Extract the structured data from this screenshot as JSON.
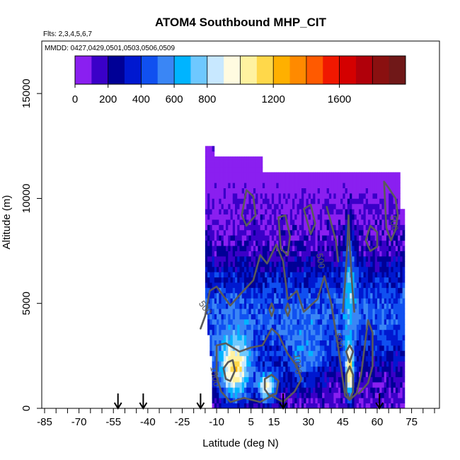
{
  "chart_data": {
    "type": "heatmap",
    "title": "ATOM4 Southbound MHP_CIT",
    "flights_text": "Flts: 2,3,4,5,6,7",
    "dates_text": "MMDD: 0427,0429,0501,0503,0506,0509",
    "xlabel": "Latitude (deg N)",
    "ylabel": "Altitude (m)",
    "xlim": [
      -85,
      85
    ],
    "ylim": [
      0,
      17500
    ],
    "x_ticks": [
      -85,
      -70,
      -55,
      -40,
      -25,
      -10,
      5,
      15,
      30,
      45,
      60,
      75
    ],
    "x_tick_labels": [
      "-85",
      "-70",
      "-55",
      "-40",
      "-25",
      "-10",
      "5",
      "15",
      "30",
      "45",
      "60",
      "75"
    ],
    "x_minor_step": 5,
    "y_ticks": [
      0,
      5000,
      10000,
      15000
    ],
    "y_tick_labels": [
      "0",
      "5000",
      "10000",
      "15000"
    ],
    "colorbar": {
      "range": [
        0,
        2000
      ],
      "tick_values": [
        0,
        200,
        400,
        600,
        800,
        1200,
        1600
      ],
      "tick_labels": [
        "0",
        "200",
        "400",
        "600",
        "800",
        "1200",
        "1600"
      ],
      "boundaries": [
        0,
        100,
        200,
        300,
        400,
        500,
        600,
        700,
        800,
        900,
        1000,
        1100,
        1200,
        1300,
        1400,
        1500,
        1600,
        1700,
        1800,
        1900,
        2000
      ],
      "colors": [
        "#8a1ff0",
        "#3a00c8",
        "#000096",
        "#0018d0",
        "#1050f0",
        "#3a86f5",
        "#00b4ff",
        "#6ec8ff",
        "#c8e8ff",
        "#fffbe0",
        "#fff2a0",
        "#ffd84a",
        "#ffb000",
        "#ff8a00",
        "#ff5a00",
        "#f01800",
        "#d40000",
        "#b0000a",
        "#8a1010",
        "#701818"
      ]
    },
    "contour_levels": [
      500,
      1000,
      1500
    ],
    "contour_labels": [
      {
        "text": "500",
        "x": -16,
        "y": 4700,
        "angle": 55
      },
      {
        "text": "500",
        "x": 34,
        "y": 7000,
        "angle": 80
      },
      {
        "text": "500",
        "x": 42,
        "y": 3200,
        "angle": 80
      },
      {
        "text": "500",
        "x": 66,
        "y": 8800,
        "angle": 80
      },
      {
        "text": "1000",
        "x": 24,
        "y": 2100,
        "angle": 85
      },
      {
        "text": "1500",
        "x": -12,
        "y": 1500,
        "angle": 80
      }
    ],
    "profile_markers_lat": [
      -53,
      -42,
      -17,
      19,
      61
    ],
    "grid": false,
    "legend": "none"
  }
}
